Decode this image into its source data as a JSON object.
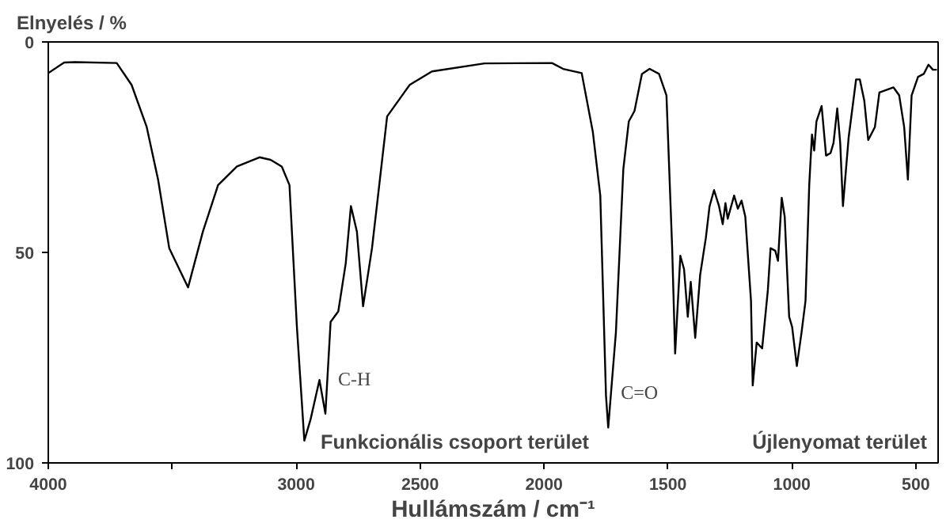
{
  "chart_data": {
    "type": "line",
    "xlabel": "Hullámszám / cm⁻¹",
    "ylabel": "Elnyelés / %",
    "xlim": [
      4000,
      410
    ],
    "ylim": [
      100,
      0
    ],
    "xticks": [
      4000,
      {
        "value": 3500,
        "label": null
      },
      3000,
      2500,
      2000,
      1500,
      1000,
      500
    ],
    "yticks": [
      0,
      50,
      100
    ],
    "grid": false,
    "marker": "none",
    "line_style": "solid",
    "annotations": [
      {
        "text": "C-H",
        "x": 2882,
        "y": 88.3
      },
      {
        "text": "C=O",
        "x": 1741,
        "y": 91.6
      },
      "Funkcionális csoport terület",
      "Újlenyomat terület"
    ],
    "series": [
      {
        "color": "#000000",
        "x": [
          4000,
          3936,
          3891,
          3724,
          3664,
          3603,
          3557,
          3512,
          3436,
          3376,
          3315,
          3239,
          3148,
          3103,
          3058,
          3027,
          2997,
          2967,
          2942,
          2906,
          2882,
          2861,
          2830,
          2800,
          2779,
          2755,
          2730,
          2694,
          2633,
          2542,
          2452,
          2240,
          1968,
          1923,
          1848,
          1803,
          1773,
          1750,
          1741,
          1710,
          1680,
          1658,
          1635,
          1605,
          1574,
          1536,
          1506,
          1483,
          1471,
          1450,
          1435,
          1420,
          1408,
          1390,
          1370,
          1347,
          1332,
          1314,
          1294,
          1279,
          1268,
          1259,
          1233,
          1218,
          1203,
          1188,
          1165,
          1158,
          1142,
          1120,
          1097,
          1086,
          1067,
          1056,
          1041,
          1029,
          1011,
          999,
          980,
          961,
          945,
          930,
          919,
          910,
          901,
          880,
          862,
          844,
          832,
          817,
          805,
          794,
          771,
          741,
          726,
          708,
          692,
          665,
          647,
          590,
          567,
          547,
          532,
          517,
          491,
          468,
          449,
          431,
          415
        ],
        "values": [
          7.4,
          4.9,
          4.8,
          5.0,
          10.2,
          20.2,
          32.7,
          49,
          58.3,
          45,
          34,
          29.6,
          27.4,
          28,
          29.6,
          34,
          67.7,
          94.7,
          89.7,
          80.3,
          88.3,
          66.5,
          64,
          52.6,
          39,
          45,
          62.8,
          49,
          17.7,
          10.2,
          7,
          5.1,
          5,
          6.4,
          7.4,
          21.4,
          36.5,
          84,
          91.6,
          69,
          30.2,
          18.9,
          16.4,
          7.6,
          6.4,
          7.6,
          12.7,
          49,
          74,
          50.8,
          54,
          65.3,
          57,
          70.3,
          55.3,
          46.5,
          39,
          35.2,
          39,
          43.3,
          38.3,
          42,
          36.5,
          39.6,
          37.7,
          41.5,
          61.5,
          81.6,
          71.4,
          72.8,
          59,
          49,
          49.6,
          52,
          37,
          41.5,
          65.3,
          67.7,
          77,
          69,
          61.5,
          34,
          22,
          25.8,
          18.9,
          15.2,
          27,
          26.4,
          24,
          15.8,
          24,
          39,
          22.7,
          8.9,
          8.9,
          13.9,
          23.3,
          20.2,
          12,
          10.8,
          12.7,
          20.2,
          32.7,
          12.7,
          8.3,
          7.6,
          5.4,
          6.6,
          6.6
        ]
      }
    ]
  }
}
